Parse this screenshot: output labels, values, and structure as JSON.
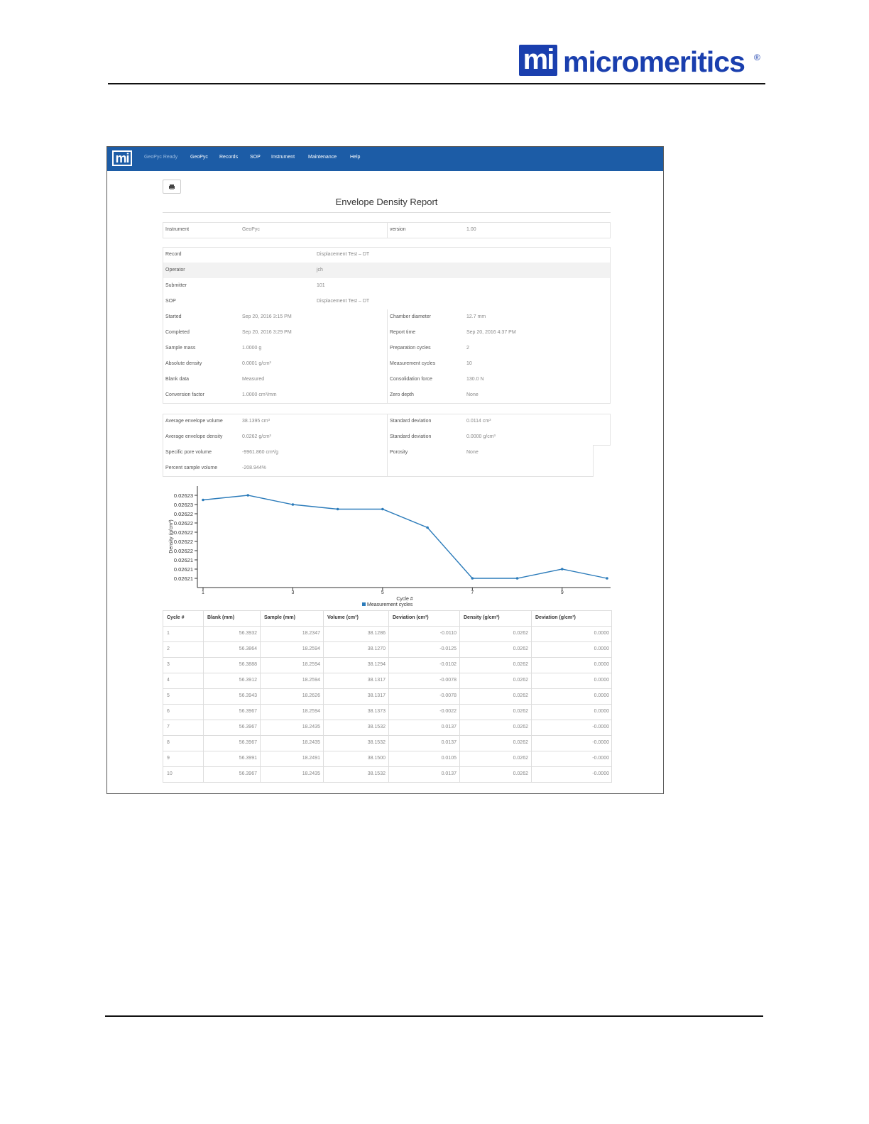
{
  "header": {
    "logo_icon": "mi",
    "logo_name": "micromeritics",
    "logo_mark": "®"
  },
  "nav": {
    "icon": "mi",
    "items": [
      "GeoPyc Ready",
      "GeoPyc",
      "Records",
      "SOP",
      "Instrument",
      "Maintenance",
      "Help"
    ]
  },
  "report": {
    "title": "Envelope Density Report",
    "instrument_table": {
      "rows": [
        [
          "Instrument",
          "GeoPyc",
          "version",
          "1.00"
        ]
      ]
    },
    "details_table": {
      "rows": [
        [
          "Record",
          "Displacement Test – DT"
        ],
        [
          "Operator",
          "jch"
        ],
        [
          "Submitter",
          "101"
        ],
        [
          "SOP",
          "Displacement Test – DT"
        ],
        [
          "Started",
          "Sep 20, 2016 3:15 PM",
          "Chamber diameter",
          "12.7 mm"
        ],
        [
          "Completed",
          "Sep 20, 2016 3:29 PM",
          "Report time",
          "Sep 20, 2016 4:37 PM"
        ],
        [
          "Sample mass",
          "1.0000 g",
          "Preparation cycles",
          "2"
        ],
        [
          "Absolute density",
          "0.0001 g/cm³",
          "Measurement cycles",
          "10"
        ],
        [
          "Blank data",
          "Measured",
          "Consolidation force",
          "130.0 N"
        ],
        [
          "Conversion factor",
          "1.0000 cm³/mm",
          "Zero depth",
          "None"
        ]
      ]
    },
    "results_table": {
      "rows": [
        [
          "Average envelope volume",
          "38.1395 cm³",
          "Standard deviation",
          "0.0114 cm³"
        ],
        [
          "Average envelope density",
          "0.0262 g/cm³",
          "Standard deviation",
          "0.0000 g/cm³"
        ],
        [
          "Specific pore volume",
          "-9961.860 cm³/g",
          "Porosity",
          "None"
        ],
        [
          "Percent sample volume",
          "-208.944%"
        ]
      ]
    }
  },
  "chart_data": {
    "type": "line",
    "x_label": "Cycle #",
    "y_label": "Density (g/cm³)",
    "x": [
      1,
      2,
      3,
      4,
      5,
      6,
      7,
      8,
      9,
      10
    ],
    "series": [
      {
        "name": "Measurement cycles",
        "color": "#2b7bba",
        "values": [
          0.026227,
          0.026228,
          0.026226,
          0.026225,
          0.026225,
          0.026221,
          0.02621,
          0.02621,
          0.026212,
          0.02621
        ]
      }
    ],
    "xlim": [
      1,
      10
    ],
    "xticks": [
      1,
      3,
      5,
      7,
      9
    ],
    "ylim": [
      0.026208,
      0.02623
    ],
    "yticks": [
      0.02621,
      {
        "value": 0.026212,
        "label": "0.02621"
      },
      {
        "value": 0.026214,
        "label": "0.02621"
      },
      {
        "value": 0.026216,
        "label": "0.02622"
      },
      {
        "value": 0.026218,
        "label": "0.02622"
      },
      0.02622,
      {
        "value": 0.026222,
        "label": "0.02622"
      },
      {
        "value": 0.026224,
        "label": "0.02622"
      },
      {
        "value": 0.026226,
        "label": "0.02623"
      },
      {
        "value": 0.026228,
        "label": "0.02623"
      }
    ],
    "legend": "bottom"
  },
  "cycles_table": {
    "columns": [
      "Cycle #",
      "Blank (mm)",
      "Sample (mm)",
      "Volume (cm³)",
      "Deviation (cm³)",
      "Density (g/cm³)",
      "Deviation (g/cm³)"
    ],
    "rows": [
      [
        "1",
        "56.3932",
        "18.2347",
        "38.1286",
        "-0.0110",
        "0.0262",
        "0.0000"
      ],
      [
        "2",
        "56.3864",
        "18.2594",
        "38.1270",
        "-0.0125",
        "0.0262",
        "0.0000"
      ],
      [
        "3",
        "56.3888",
        "18.2594",
        "38.1294",
        "-0.0102",
        "0.0262",
        "0.0000"
      ],
      [
        "4",
        "56.3912",
        "18.2594",
        "38.1317",
        "-0.0078",
        "0.0262",
        "0.0000"
      ],
      [
        "5",
        "56.3943",
        "18.2626",
        "38.1317",
        "-0.0078",
        "0.0262",
        "0.0000"
      ],
      [
        "6",
        "56.3967",
        "18.2594",
        "38.1373",
        "-0.0022",
        "0.0262",
        "0.0000"
      ],
      [
        "7",
        "56.3967",
        "18.2435",
        "38.1532",
        "0.0137",
        "0.0262",
        "-0.0000"
      ],
      [
        "8",
        "56.3967",
        "18.2435",
        "38.1532",
        "0.0137",
        "0.0262",
        "-0.0000"
      ],
      [
        "9",
        "56.3991",
        "18.2491",
        "38.1500",
        "0.0105",
        "0.0262",
        "-0.0000"
      ],
      [
        "10",
        "56.3967",
        "18.2435",
        "38.1532",
        "0.0137",
        "0.0262",
        "-0.0000"
      ]
    ]
  }
}
